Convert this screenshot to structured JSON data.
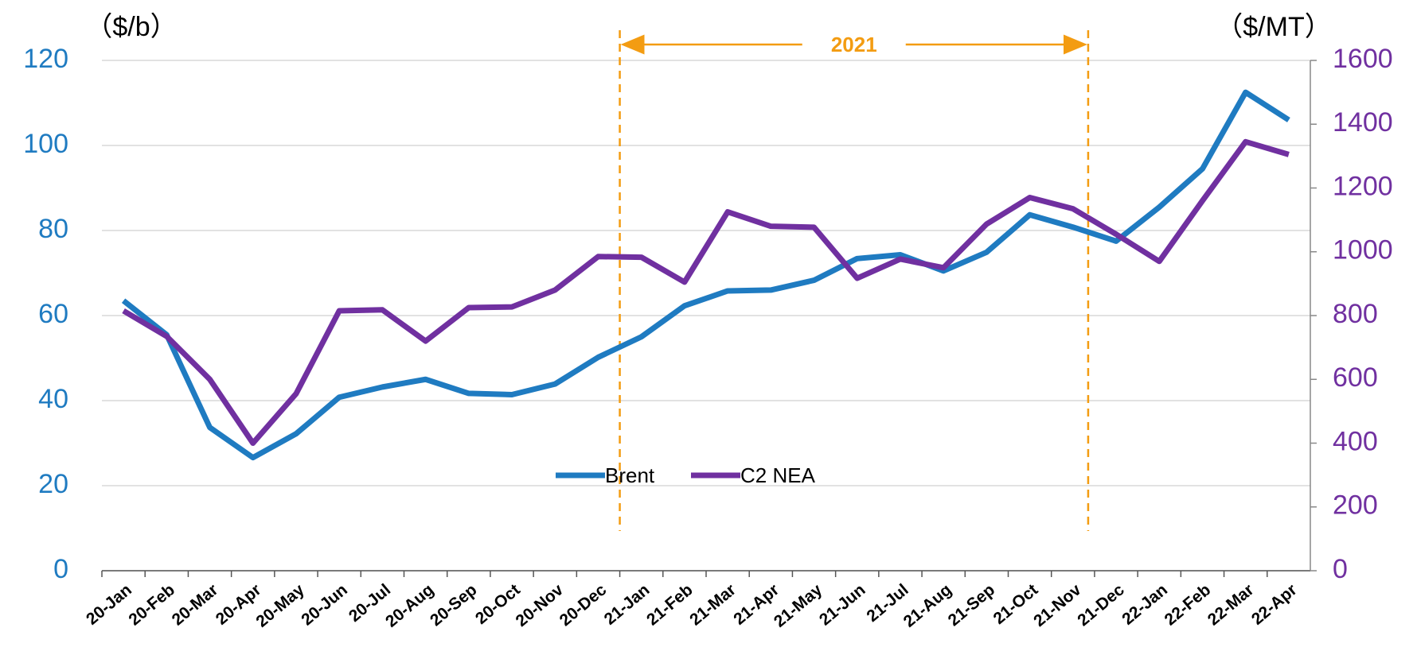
{
  "chart_data": {
    "type": "line",
    "y_label": "（$/b）",
    "y2_label": "（$/MT）",
    "annotation": "2021",
    "categories": [
      "20-Jan",
      "20-Feb",
      "20-Mar",
      "20-Apr",
      "20-May",
      "20-Jun",
      "20-Jul",
      "20-Aug",
      "20-Sep",
      "20-Oct",
      "20-Nov",
      "20-Dec",
      "21-Jan",
      "21-Feb",
      "21-Mar",
      "21-Apr",
      "21-May",
      "21-Jun",
      "21-Jul",
      "21-Aug",
      "21-Sep",
      "21-Oct",
      "21-Nov",
      "21-Dec",
      "22-Jan",
      "22-Feb",
      "22-Mar",
      "22-Apr"
    ],
    "series": [
      {
        "name": "Brent",
        "color": "#1f7bc1",
        "axis": "y",
        "values": [
          63.5,
          55.5,
          33.7,
          26.6,
          32.2,
          40.8,
          43.2,
          45,
          41.7,
          41.4,
          43.9,
          50.2,
          55,
          62.3,
          65.8,
          66,
          68.3,
          73.4,
          74.3,
          70.5,
          74.9,
          83.7,
          80.8,
          77.5,
          85.5,
          94.5,
          112.5,
          106
        ]
      },
      {
        "name": "C2 NEA",
        "color": "#7030a0",
        "axis": "y2",
        "values": [
          815,
          735,
          600,
          400,
          555,
          815,
          818,
          720,
          825,
          827,
          880,
          985,
          983,
          905,
          1125,
          1080,
          1077,
          917,
          977,
          950,
          1087,
          1170,
          1135,
          1055,
          970,
          1160,
          1345,
          1305
        ]
      }
    ],
    "ylim": [
      0,
      120
    ],
    "yticks": [
      0,
      20,
      40,
      60,
      80,
      100,
      120
    ],
    "y2lim": [
      0,
      1600
    ],
    "y2ticks": [
      0,
      200,
      400,
      600,
      800,
      1000,
      1200,
      1400,
      1600
    ],
    "grid": true,
    "legend": "bottom"
  }
}
